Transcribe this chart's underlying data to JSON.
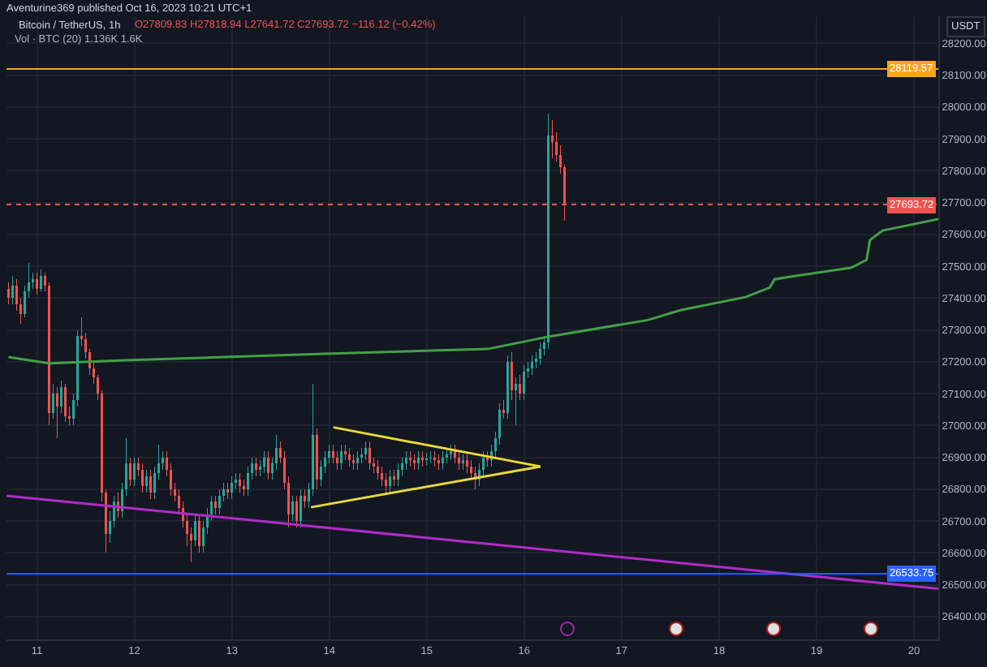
{
  "chart_data": {
    "type": "candlestick",
    "title": "Bitcoin / TetherUS, 1h",
    "subtitle": "O27809.83 H27818.94 L27641.72 C27693.72 −116.12 (−0.42%)",
    "ylabel": "USDT",
    "annotations": [
      "Aventurine369 published Oct 16, 2023 10:21 UTC+1",
      "Vol · BTC (20) 1.136K 1.6K"
    ],
    "xlim": [
      "2023-10-10T16:30",
      "2023-10-20T06:00"
    ],
    "xticks": [
      {
        "value": "2023-10-11",
        "label": "11"
      },
      {
        "value": "2023-10-12",
        "label": "12"
      },
      {
        "value": "2023-10-13",
        "label": "13"
      },
      {
        "value": "2023-10-14",
        "label": "14"
      },
      {
        "value": "2023-10-15",
        "label": "15"
      },
      {
        "value": "2023-10-16",
        "label": "16"
      },
      {
        "value": "2023-10-17",
        "label": "17"
      },
      {
        "value": "2023-10-18",
        "label": "18"
      },
      {
        "value": "2023-10-19",
        "label": "19"
      },
      {
        "value": "2023-10-20",
        "label": "20"
      }
    ],
    "ylim": [
      26328,
      28285
    ],
    "yticks": [
      {
        "value": 26400,
        "label": "26400.00"
      },
      {
        "value": 26500,
        "label": "26500.00"
      },
      {
        "value": 26600,
        "label": "26600.00"
      },
      {
        "value": 26700,
        "label": "26700.00"
      },
      {
        "value": 26800,
        "label": "26800.00"
      },
      {
        "value": 26900,
        "label": "26900.00"
      },
      {
        "value": 27000,
        "label": "27000.00"
      },
      {
        "value": 27100,
        "label": "27100.00"
      },
      {
        "value": 27200,
        "label": "27200.00"
      },
      {
        "value": 27300,
        "label": "27300.00"
      },
      {
        "value": 27400,
        "label": "27400.00"
      },
      {
        "value": 27500,
        "label": "27500.00"
      },
      {
        "value": 27600,
        "label": "27600.00"
      },
      {
        "value": 27700,
        "label": "27700.00"
      },
      {
        "value": 27800,
        "label": "27800.00"
      },
      {
        "value": 27900,
        "label": "27900.00"
      },
      {
        "value": 28000,
        "label": "28000.00"
      },
      {
        "value": 28100,
        "label": "28100.00"
      },
      {
        "value": 28200,
        "label": "28200.00"
      }
    ],
    "grid": true,
    "ref_lines": [
      {
        "axis": "y",
        "value": 28119.57,
        "label": "28119.57",
        "color": "#f7a51c",
        "line_style": "solid"
      },
      {
        "axis": "y",
        "value": 27693.72,
        "label": "27693.72",
        "color": "#ef5350",
        "line_style": "dotted"
      },
      {
        "axis": "y",
        "value": 26533.75,
        "label": "26533.75",
        "color": "#2962ff",
        "line_style": "solid"
      }
    ],
    "series": [
      {
        "type": "candlestick",
        "x": [
          "2023-10-10T17:00",
          "2023-10-10T18:00",
          "2023-10-10T19:00",
          "2023-10-10T20:00",
          "2023-10-10T21:00",
          "2023-10-10T22:00",
          "2023-10-10T23:00",
          "2023-10-11T00:00",
          "2023-10-11T01:00",
          "2023-10-11T02:00",
          "2023-10-11T03:00",
          "2023-10-11T04:00",
          "2023-10-11T05:00",
          "2023-10-11T06:00",
          "2023-10-11T07:00",
          "2023-10-11T08:00",
          "2023-10-11T09:00",
          "2023-10-11T10:00",
          "2023-10-11T11:00",
          "2023-10-11T12:00",
          "2023-10-11T13:00",
          "2023-10-11T14:00",
          "2023-10-11T15:00",
          "2023-10-11T16:00",
          "2023-10-11T17:00",
          "2023-10-11T18:00",
          "2023-10-11T19:00",
          "2023-10-11T20:00",
          "2023-10-11T21:00",
          "2023-10-11T22:00",
          "2023-10-11T23:00",
          "2023-10-12T00:00",
          "2023-10-12T01:00",
          "2023-10-12T02:00",
          "2023-10-12T03:00",
          "2023-10-12T04:00",
          "2023-10-12T05:00",
          "2023-10-12T06:00",
          "2023-10-12T07:00",
          "2023-10-12T08:00",
          "2023-10-12T09:00",
          "2023-10-12T10:00",
          "2023-10-12T11:00",
          "2023-10-12T12:00",
          "2023-10-12T13:00",
          "2023-10-12T14:00",
          "2023-10-12T15:00",
          "2023-10-12T16:00",
          "2023-10-12T17:00",
          "2023-10-12T18:00",
          "2023-10-12T19:00",
          "2023-10-12T20:00",
          "2023-10-12T21:00",
          "2023-10-12T22:00",
          "2023-10-12T23:00",
          "2023-10-13T00:00",
          "2023-10-13T01:00",
          "2023-10-13T02:00",
          "2023-10-13T03:00",
          "2023-10-13T04:00",
          "2023-10-13T05:00",
          "2023-10-13T06:00",
          "2023-10-13T07:00",
          "2023-10-13T08:00",
          "2023-10-13T09:00",
          "2023-10-13T10:00",
          "2023-10-13T11:00",
          "2023-10-13T12:00",
          "2023-10-13T13:00",
          "2023-10-13T14:00",
          "2023-10-13T15:00",
          "2023-10-13T16:00",
          "2023-10-13T17:00",
          "2023-10-13T18:00",
          "2023-10-13T19:00",
          "2023-10-13T20:00",
          "2023-10-13T21:00",
          "2023-10-13T22:00",
          "2023-10-13T23:00",
          "2023-10-14T00:00",
          "2023-10-14T01:00",
          "2023-10-14T02:00",
          "2023-10-14T03:00",
          "2023-10-14T04:00",
          "2023-10-14T05:00",
          "2023-10-14T06:00",
          "2023-10-14T07:00",
          "2023-10-14T08:00",
          "2023-10-14T09:00",
          "2023-10-14T10:00",
          "2023-10-14T11:00",
          "2023-10-14T12:00",
          "2023-10-14T13:00",
          "2023-10-14T14:00",
          "2023-10-14T15:00",
          "2023-10-14T16:00",
          "2023-10-14T17:00",
          "2023-10-14T18:00",
          "2023-10-14T19:00",
          "2023-10-14T20:00",
          "2023-10-14T21:00",
          "2023-10-14T22:00",
          "2023-10-14T23:00",
          "2023-10-15T00:00",
          "2023-10-15T01:00",
          "2023-10-15T02:00",
          "2023-10-15T03:00",
          "2023-10-15T04:00",
          "2023-10-15T05:00",
          "2023-10-15T06:00",
          "2023-10-15T07:00",
          "2023-10-15T08:00",
          "2023-10-15T09:00",
          "2023-10-15T10:00",
          "2023-10-15T11:00",
          "2023-10-15T12:00",
          "2023-10-15T13:00",
          "2023-10-15T14:00",
          "2023-10-15T15:00",
          "2023-10-15T16:00",
          "2023-10-15T17:00",
          "2023-10-15T18:00",
          "2023-10-15T19:00",
          "2023-10-15T20:00",
          "2023-10-15T21:00",
          "2023-10-15T22:00",
          "2023-10-15T23:00",
          "2023-10-16T00:00",
          "2023-10-16T01:00",
          "2023-10-16T02:00",
          "2023-10-16T03:00",
          "2023-10-16T04:00",
          "2023-10-16T05:00",
          "2023-10-16T06:00",
          "2023-10-16T07:00",
          "2023-10-16T08:00",
          "2023-10-16T09:00",
          "2023-10-16T10:00"
        ],
        "ohlc": [
          [
            27430,
            27450,
            27380,
            27400
          ],
          [
            27400,
            27470,
            27380,
            27440
          ],
          [
            27440,
            27460,
            27360,
            27380
          ],
          [
            27380,
            27400,
            27320,
            27350
          ],
          [
            27350,
            27440,
            27340,
            27420
          ],
          [
            27420,
            27510,
            27400,
            27450
          ],
          [
            27450,
            27480,
            27430,
            27460
          ],
          [
            27460,
            27480,
            27410,
            27430
          ],
          [
            27430,
            27490,
            27420,
            27470
          ],
          [
            27470,
            27480,
            27420,
            27440
          ],
          [
            27440,
            27450,
            27000,
            27040
          ],
          [
            27040,
            27130,
            27020,
            27100
          ],
          [
            27100,
            27120,
            26960,
            27060
          ],
          [
            27060,
            27140,
            27040,
            27120
          ],
          [
            27120,
            27130,
            27010,
            27030
          ],
          [
            27030,
            27060,
            27000,
            27020
          ],
          [
            27020,
            27100,
            27000,
            27080
          ],
          [
            27080,
            27300,
            27060,
            27280
          ],
          [
            27280,
            27340,
            27250,
            27270
          ],
          [
            27270,
            27290,
            27210,
            27230
          ],
          [
            27230,
            27240,
            27160,
            27180
          ],
          [
            27180,
            27200,
            27130,
            27150
          ],
          [
            27150,
            27160,
            27080,
            27100
          ],
          [
            27100,
            27110,
            26760,
            26790
          ],
          [
            26790,
            26800,
            26600,
            26660
          ],
          [
            26660,
            26730,
            26630,
            26700
          ],
          [
            26700,
            26780,
            26680,
            26760
          ],
          [
            26760,
            26790,
            26710,
            26730
          ],
          [
            26730,
            26820,
            26710,
            26800
          ],
          [
            26800,
            26960,
            26780,
            26880
          ],
          [
            26880,
            26900,
            26810,
            26830
          ],
          [
            26830,
            26900,
            26810,
            26880
          ],
          [
            26880,
            26900,
            26840,
            26860
          ],
          [
            26860,
            26880,
            26790,
            26810
          ],
          [
            26810,
            26860,
            26790,
            26840
          ],
          [
            26840,
            26860,
            26770,
            26790
          ],
          [
            26790,
            26870,
            26770,
            26850
          ],
          [
            26850,
            26940,
            26830,
            26880
          ],
          [
            26880,
            26920,
            26860,
            26900
          ],
          [
            26900,
            26920,
            26840,
            26860
          ],
          [
            26860,
            26880,
            26780,
            26800
          ],
          [
            26800,
            26820,
            26760,
            26780
          ],
          [
            26780,
            26800,
            26720,
            26740
          ],
          [
            26740,
            26760,
            26680,
            26700
          ],
          [
            26700,
            26720,
            26620,
            26660
          ],
          [
            26660,
            26680,
            26570,
            26640
          ],
          [
            26640,
            26720,
            26620,
            26700
          ],
          [
            26700,
            26720,
            26600,
            26620
          ],
          [
            26620,
            26700,
            26600,
            26680
          ],
          [
            26680,
            26740,
            26660,
            26720
          ],
          [
            26720,
            26780,
            26700,
            26760
          ],
          [
            26760,
            26780,
            26720,
            26740
          ],
          [
            26740,
            26800,
            26720,
            26780
          ],
          [
            26780,
            26820,
            26760,
            26800
          ],
          [
            26800,
            26820,
            26770,
            26790
          ],
          [
            26790,
            26840,
            26770,
            26820
          ],
          [
            26820,
            26850,
            26800,
            26830
          ],
          [
            26830,
            26850,
            26790,
            26810
          ],
          [
            26810,
            26830,
            26780,
            26800
          ],
          [
            26800,
            26870,
            26780,
            26850
          ],
          [
            26850,
            26900,
            26830,
            26880
          ],
          [
            26880,
            26900,
            26840,
            26860
          ],
          [
            26860,
            26890,
            26840,
            26870
          ],
          [
            26870,
            26920,
            26850,
            26900
          ],
          [
            26900,
            26920,
            26830,
            26850
          ],
          [
            26850,
            26900,
            26830,
            26880
          ],
          [
            26880,
            26970,
            26860,
            26930
          ],
          [
            26930,
            26950,
            26880,
            26900
          ],
          [
            26900,
            26920,
            26800,
            26820
          ],
          [
            26820,
            26840,
            26680,
            26720
          ],
          [
            26720,
            26780,
            26700,
            26760
          ],
          [
            26760,
            26780,
            26680,
            26700
          ],
          [
            26700,
            26800,
            26680,
            26780
          ],
          [
            26780,
            26800,
            26740,
            26760
          ],
          [
            26760,
            26820,
            26740,
            26800
          ],
          [
            26800,
            27130,
            26780,
            26970
          ],
          [
            26970,
            26990,
            26800,
            26830
          ],
          [
            26830,
            26890,
            26810,
            26870
          ],
          [
            26870,
            26920,
            26850,
            26900
          ],
          [
            26900,
            26940,
            26880,
            26920
          ],
          [
            26920,
            26940,
            26880,
            26900
          ],
          [
            26900,
            26920,
            26860,
            26880
          ],
          [
            26880,
            26940,
            26860,
            26920
          ],
          [
            26920,
            26940,
            26890,
            26910
          ],
          [
            26910,
            26930,
            26870,
            26890
          ],
          [
            26890,
            26910,
            26860,
            26880
          ],
          [
            26880,
            26920,
            26860,
            26900
          ],
          [
            26900,
            26930,
            26880,
            26910
          ],
          [
            26910,
            26950,
            26890,
            26930
          ],
          [
            26930,
            26950,
            26860,
            26880
          ],
          [
            26880,
            26900,
            26850,
            26870
          ],
          [
            26870,
            26890,
            26830,
            26850
          ],
          [
            26850,
            26870,
            26810,
            26830
          ],
          [
            26830,
            26850,
            26790,
            26810
          ],
          [
            26810,
            26860,
            26790,
            26840
          ],
          [
            26840,
            26860,
            26810,
            26830
          ],
          [
            26830,
            26880,
            26810,
            26860
          ],
          [
            26860,
            26900,
            26840,
            26880
          ],
          [
            26880,
            26920,
            26860,
            26900
          ],
          [
            26900,
            26920,
            26870,
            26890
          ],
          [
            26890,
            26910,
            26860,
            26880
          ],
          [
            26880,
            26920,
            26860,
            26900
          ],
          [
            26900,
            26920,
            26870,
            26890
          ],
          [
            26890,
            26915,
            26875,
            26895
          ],
          [
            26895,
            26920,
            26880,
            26900
          ],
          [
            26900,
            26920,
            26870,
            26890
          ],
          [
            26890,
            26910,
            26860,
            26880
          ],
          [
            26880,
            26920,
            26860,
            26900
          ],
          [
            26900,
            26930,
            26880,
            26910
          ],
          [
            26910,
            26940,
            26890,
            26920
          ],
          [
            26920,
            26940,
            26880,
            26900
          ],
          [
            26900,
            26920,
            26860,
            26880
          ],
          [
            26880,
            26910,
            26860,
            26890
          ],
          [
            26890,
            26910,
            26850,
            26870
          ],
          [
            26870,
            26890,
            26830,
            26850
          ],
          [
            26850,
            26870,
            26800,
            26830
          ],
          [
            26830,
            26880,
            26810,
            26860
          ],
          [
            26860,
            26920,
            26840,
            26900
          ],
          [
            26900,
            26920,
            26870,
            26890
          ],
          [
            26890,
            26940,
            26870,
            26920
          ],
          [
            26920,
            26980,
            26900,
            26960
          ],
          [
            26960,
            27070,
            26940,
            27050
          ],
          [
            27050,
            27080,
            27020,
            27040
          ],
          [
            27040,
            27220,
            27020,
            27200
          ],
          [
            27200,
            27230,
            27080,
            27110
          ],
          [
            27110,
            27150,
            27000,
            27130
          ],
          [
            27130,
            27160,
            27080,
            27100
          ],
          [
            27100,
            27190,
            27080,
            27170
          ],
          [
            27170,
            27200,
            27150,
            27180
          ],
          [
            27180,
            27220,
            27160,
            27200
          ],
          [
            27200,
            27230,
            27180,
            27210
          ],
          [
            27210,
            27260,
            27190,
            27240
          ],
          [
            27240,
            27280,
            27220,
            27260
          ],
          [
            27260,
            27980,
            27240,
            27910
          ],
          [
            27910,
            27960,
            27840,
            27890
          ],
          [
            27890,
            27920,
            27830,
            27850
          ],
          [
            27850,
            27880,
            27790,
            27809.83
          ],
          [
            27809.83,
            27818.94,
            27641.72,
            27693.72
          ]
        ]
      },
      {
        "type": "line",
        "color": "#43a047",
        "x": [
          "2023-10-10T17:00",
          "2023-10-11T03:00",
          "2023-10-11T23:00",
          "2023-10-13T23:00",
          "2023-10-15T15:00",
          "2023-10-16T06:30",
          "2023-10-17T06:30",
          "2023-10-17T14:30",
          "2023-10-18T06:30",
          "2023-10-18T12:30",
          "2023-10-18T13:40",
          "2023-10-18T18:30",
          "2023-10-19T08:30",
          "2023-10-19T12:20",
          "2023-10-19T13:10",
          "2023-10-19T16:20",
          "2023-10-20T06:00"
        ],
        "values": [
          27215,
          27195,
          27205,
          27225,
          27240,
          27280,
          27331,
          27362,
          27403,
          27433,
          27459,
          27469,
          27495,
          27520,
          27582,
          27612,
          27648
        ]
      },
      {
        "type": "line",
        "color": "#b02cc8",
        "x": [
          "2023-10-10T16:30",
          "2023-10-20T06:00"
        ],
        "values": [
          26779,
          26487
        ]
      },
      {
        "type": "line",
        "color": "#e8d93a",
        "x": [
          "2023-10-14T01:00",
          "2023-10-16T04:00"
        ],
        "values": [
          26994,
          26871
        ]
      },
      {
        "type": "line",
        "color": "#e8d93a",
        "x": [
          "2023-10-13T19:30",
          "2023-10-16T04:00"
        ],
        "values": [
          26743,
          26871
        ]
      }
    ]
  }
}
